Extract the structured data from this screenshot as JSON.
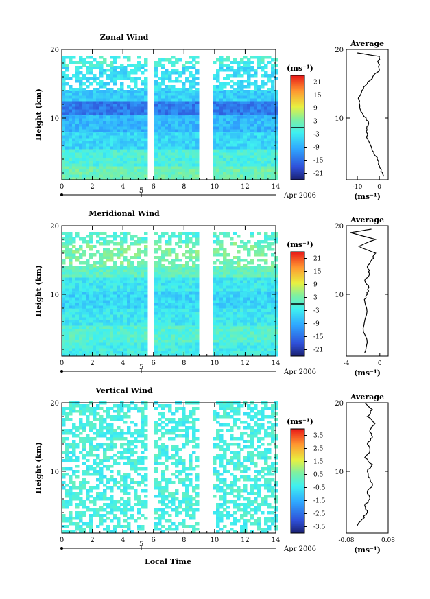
{
  "figure": {
    "date_label": "Apr 2006",
    "xaxis_label": "Local Time",
    "day_marker": "5",
    "average_title": "Average"
  },
  "chart_data": [
    {
      "type": "heatmap",
      "title": "Zonal Wind",
      "ylabel": "Height (km)",
      "unit": "(ms⁻¹)",
      "xlim": [
        0,
        14
      ],
      "ylim": [
        1,
        20
      ],
      "xticks": [
        0,
        2,
        4,
        6,
        8,
        10,
        12,
        14
      ],
      "yticks": [
        10,
        20
      ],
      "data_gaps_x": [
        [
          5.6,
          5.95
        ],
        [
          8.85,
          9.65
        ]
      ],
      "colorbar": {
        "min": -24,
        "max": 24,
        "ticks": [
          21,
          15,
          9,
          3,
          -3,
          -9,
          -15,
          -21
        ],
        "zero_line": 0
      },
      "profile": {
        "title": "Average",
        "xlabel": "(ms⁻¹)",
        "xlim": [
          -15,
          4
        ],
        "xticks": [
          -10,
          0
        ],
        "height": [
          1.5,
          2,
          3,
          4,
          5,
          6,
          7,
          8,
          9,
          10,
          11,
          12,
          13,
          14,
          15,
          16,
          17,
          18,
          19,
          19.5
        ],
        "values": [
          2,
          1.5,
          0,
          -1,
          -2.5,
          -4,
          -5.5,
          -6,
          -5,
          -6,
          -8.5,
          -9,
          -9.5,
          -8,
          -5.5,
          -3,
          0,
          -0.5,
          0,
          -10
        ]
      },
      "rows": [
        {
          "h": [
            1,
            3
          ],
          "v": 2
        },
        {
          "h": [
            3,
            5.5
          ],
          "v": -1
        },
        {
          "h": [
            5.5,
            8
          ],
          "v": -5
        },
        {
          "h": [
            8,
            10.5
          ],
          "v": -8
        },
        {
          "h": [
            10.5,
            12.5
          ],
          "v": -14
        },
        {
          "h": [
            12.5,
            14
          ],
          "v": -6
        },
        {
          "h": [
            14,
            17.5
          ],
          "v": -4,
          "sparse": true
        },
        {
          "h": [
            17.5,
            19
          ],
          "v": -1,
          "sparse": true
        }
      ]
    },
    {
      "type": "heatmap",
      "title": "Meridional Wind",
      "ylabel": "Height (km)",
      "unit": "(ms⁻¹)",
      "xlim": [
        0,
        14
      ],
      "ylim": [
        1,
        20
      ],
      "xticks": [
        0,
        2,
        4,
        6,
        8,
        10,
        12,
        14
      ],
      "yticks": [
        10,
        20
      ],
      "data_gaps_x": [
        [
          5.6,
          5.95
        ],
        [
          8.85,
          9.65
        ]
      ],
      "colorbar": {
        "min": -24,
        "max": 24,
        "ticks": [
          21,
          15,
          9,
          3,
          -3,
          -9,
          -15,
          -21
        ],
        "zero_line": 0
      },
      "profile": {
        "title": "Average",
        "xlabel": "(ms⁻¹)",
        "xlim": [
          -4,
          1
        ],
        "xticks": [
          -4,
          0
        ],
        "height": [
          1.5,
          3,
          5,
          7,
          9,
          10,
          11,
          12,
          13,
          14,
          15,
          16,
          17,
          18,
          19,
          19.5
        ],
        "values": [
          -1.8,
          -1.5,
          -2,
          -1.6,
          -1.8,
          -1.5,
          -1.3,
          -1.8,
          -1.2,
          -1.5,
          -1,
          -0.5,
          -2.5,
          -0.5,
          -3.5,
          -1
        ]
      },
      "rows": [
        {
          "h": [
            1,
            3
          ],
          "v": -2
        },
        {
          "h": [
            3,
            5.5
          ],
          "v": 0
        },
        {
          "h": [
            5.5,
            8
          ],
          "v": -3
        },
        {
          "h": [
            8,
            10.5
          ],
          "v": -5
        },
        {
          "h": [
            10.5,
            12.5
          ],
          "v": -3
        },
        {
          "h": [
            12.5,
            14
          ],
          "v": 1
        },
        {
          "h": [
            14,
            17.5
          ],
          "v": 3,
          "sparse": true
        },
        {
          "h": [
            17.5,
            19
          ],
          "v": 0,
          "sparse": true
        }
      ]
    },
    {
      "type": "heatmap",
      "title": "Vertical Wind",
      "ylabel": "Height (km)",
      "unit": "(ms⁻¹)",
      "xlim": [
        0,
        14
      ],
      "ylim": [
        1,
        20
      ],
      "xticks": [
        0,
        2,
        4,
        6,
        8,
        10,
        12,
        14
      ],
      "yticks": [
        10,
        20
      ],
      "data_gaps_x": [
        [
          5.6,
          5.95
        ],
        [
          8.85,
          9.65
        ]
      ],
      "colorbar": {
        "min": -4,
        "max": 4,
        "ticks": [
          3.5,
          2.5,
          1.5,
          0.5,
          -0.5,
          -1.5,
          -2.5,
          -3.5
        ],
        "zero_line": null
      },
      "profile": {
        "title": "Average",
        "xlabel": "(ms⁻¹)",
        "xlim": [
          -0.08,
          0.08
        ],
        "xticks": [
          -0.08,
          0.08
        ],
        "height": [
          2,
          3,
          4,
          5,
          6,
          7,
          8,
          9,
          10,
          11,
          12,
          13,
          14,
          15,
          16,
          17,
          18,
          19,
          20
        ],
        "values": [
          -0.04,
          -0.02,
          0.0,
          -0.01,
          0.01,
          0.0,
          0.02,
          0.01,
          0.0,
          0.02,
          -0.01,
          0.01,
          0.0,
          0.02,
          0.01,
          0.03,
          0.0,
          0.02,
          -0.01
        ]
      },
      "rows": [
        {
          "h": [
            1,
            20
          ],
          "v": -0.2,
          "sparse": true
        }
      ]
    }
  ]
}
